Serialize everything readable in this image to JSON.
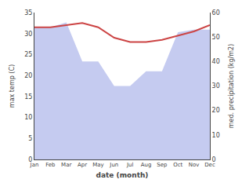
{
  "chart_data": {
    "type": "line",
    "xlabel": "date (month)",
    "ylabel": "max temp (C)",
    "y2label": "med. precipitation (kg/m2)",
    "categories": [
      "Jan",
      "Feb",
      "Mar",
      "Apr",
      "May",
      "Jun",
      "Jul",
      "Aug",
      "Sep",
      "Oct",
      "Nov",
      "Dec"
    ],
    "series": [
      {
        "type": "area",
        "axis": "y2",
        "color": "#c5cbf0",
        "values": [
          54,
          54,
          56,
          40,
          40,
          30,
          30,
          36,
          36,
          52,
          53,
          53
        ]
      },
      {
        "type": "line",
        "color": "#cc4444",
        "values": [
          31.5,
          31.5,
          32.0,
          32.5,
          31.5,
          29.0,
          28.0,
          28.0,
          28.5,
          29.5,
          30.5,
          32.0
        ]
      }
    ],
    "ylim": [
      0,
      35
    ],
    "yticks": [
      0,
      5,
      10,
      15,
      20,
      25,
      30,
      35
    ],
    "y2lim": [
      0,
      60
    ],
    "y2ticks": [
      0,
      10,
      20,
      30,
      40,
      50,
      60
    ],
    "grid": false
  }
}
